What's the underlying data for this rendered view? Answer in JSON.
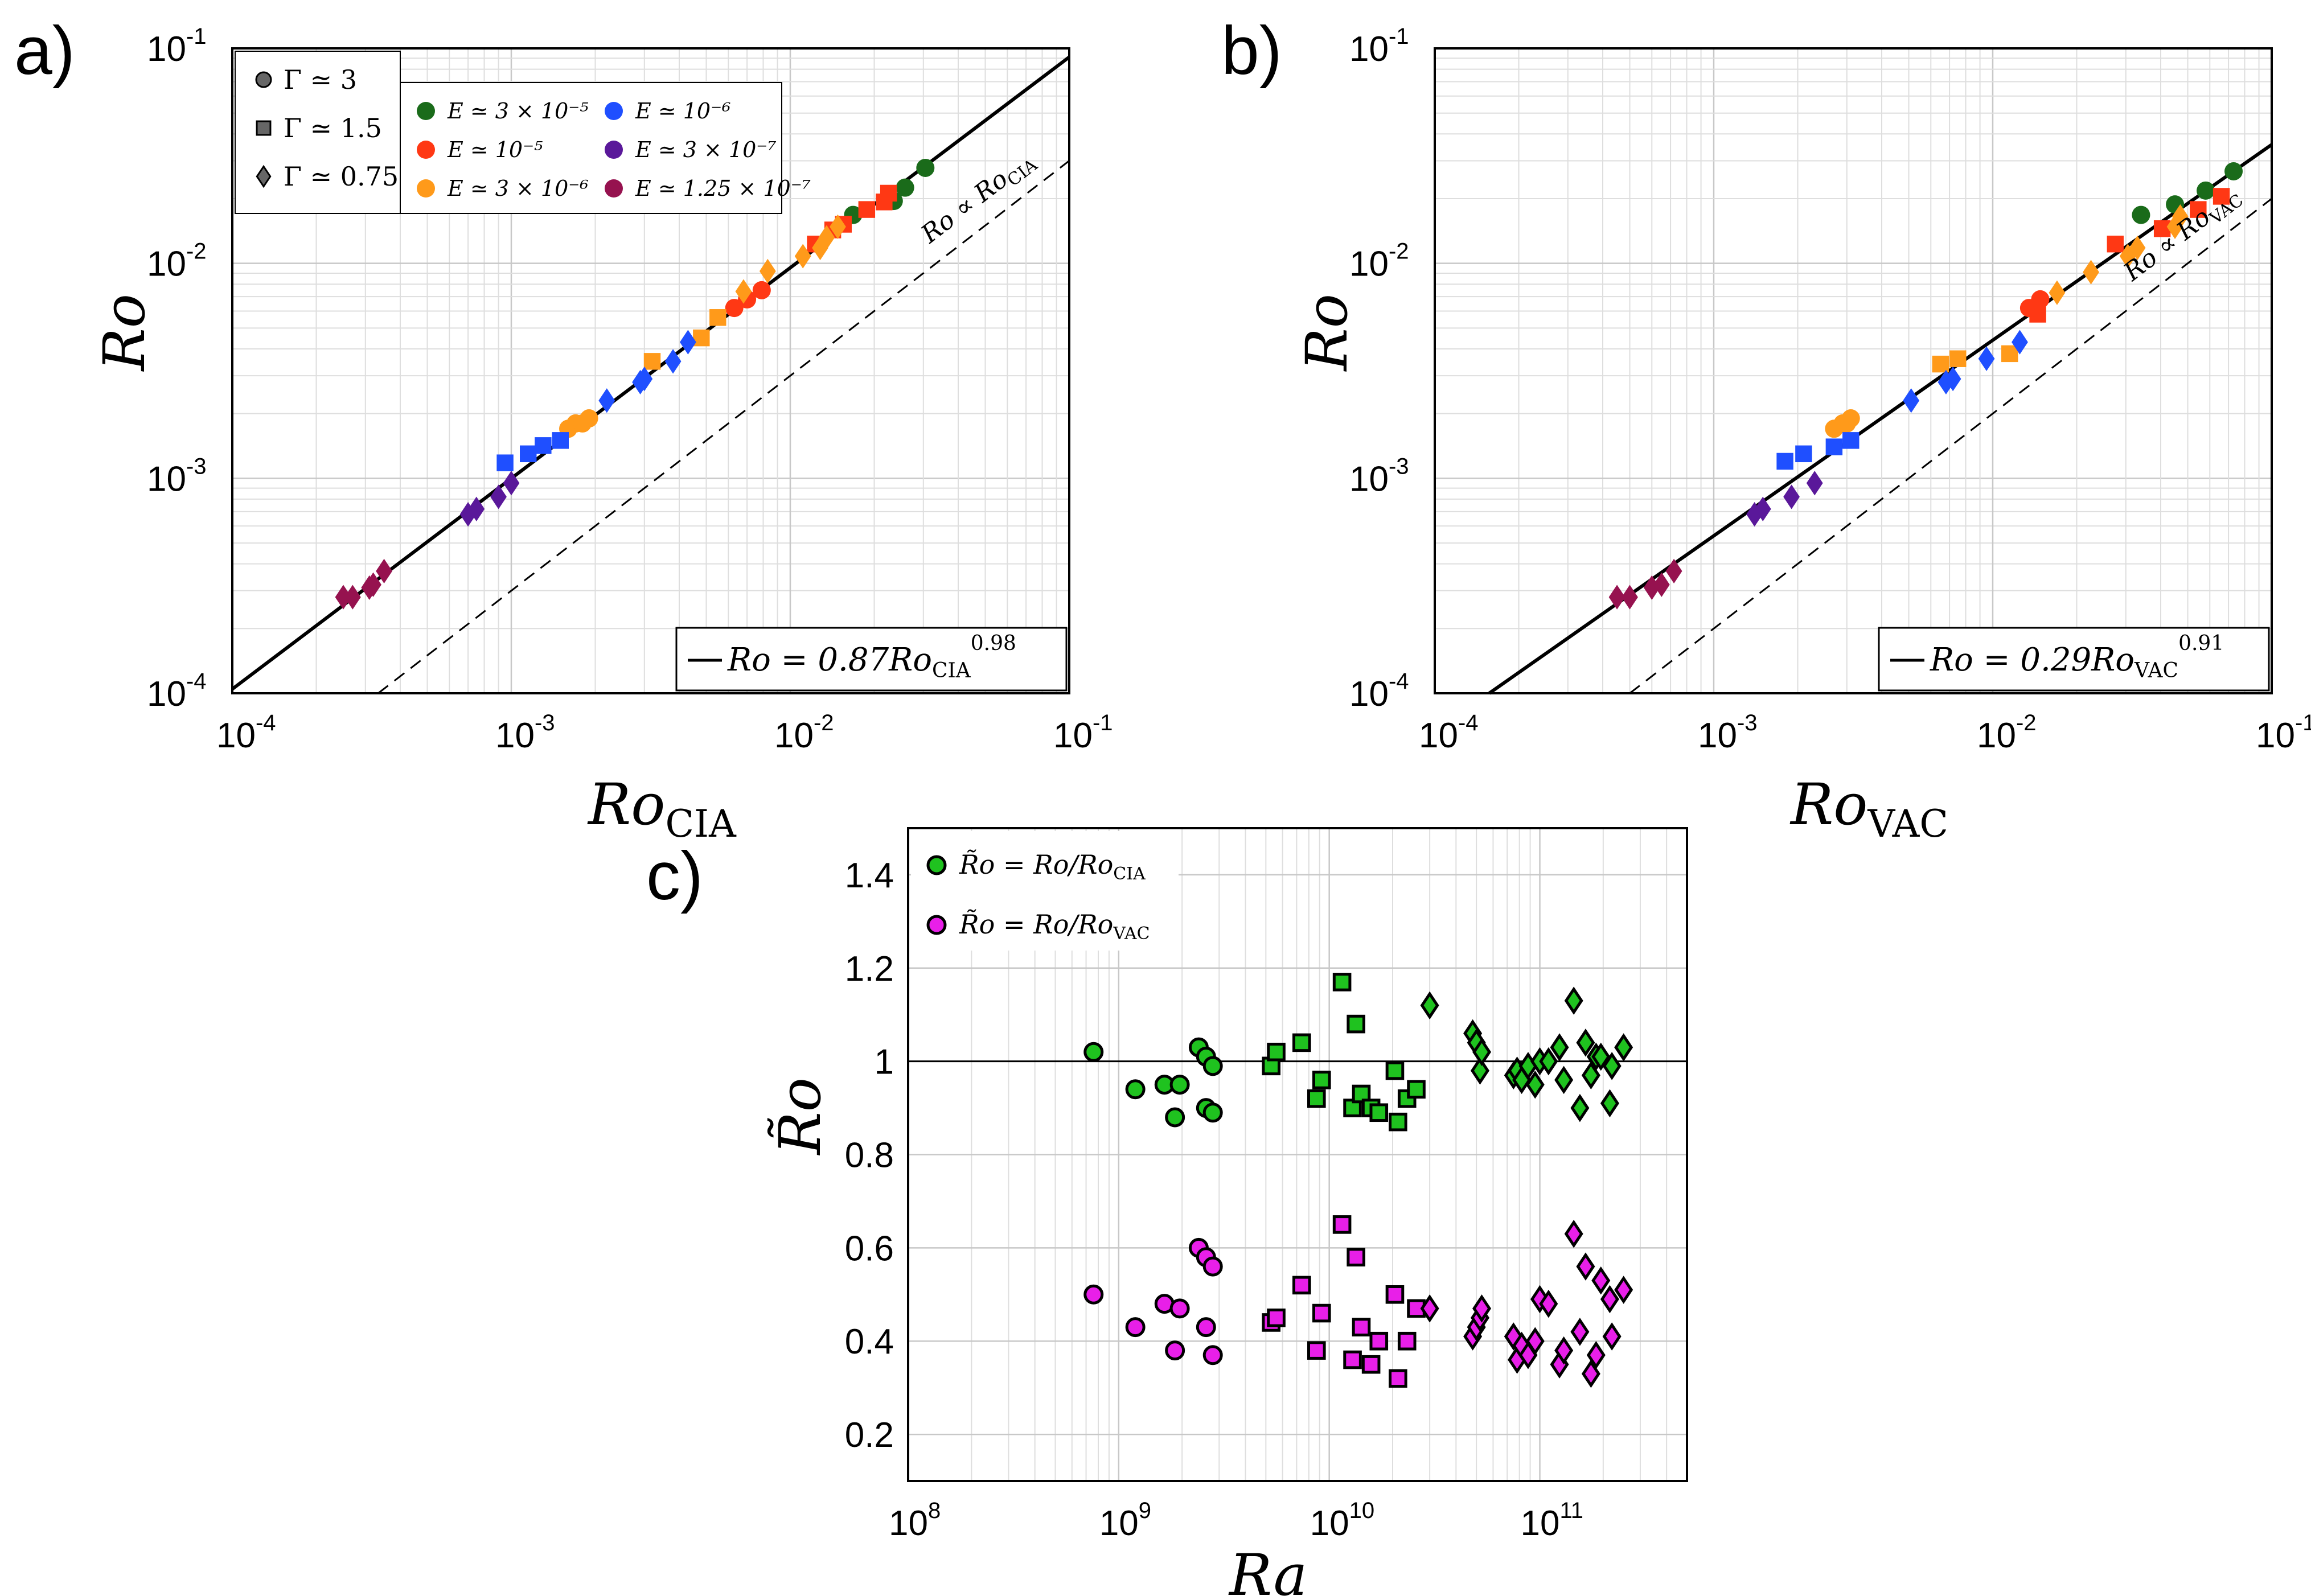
{
  "figure": {
    "panel_labels": [
      "a)",
      "b)",
      "c)"
    ]
  },
  "legend": {
    "shapes": [
      {
        "shape": "circle",
        "label": "Γ ≃ 3"
      },
      {
        "shape": "square",
        "label": "Γ ≃ 1.5"
      },
      {
        "shape": "diamond",
        "label": "Γ ≃ 0.75"
      }
    ],
    "ekman": [
      {
        "key": "E3e-5",
        "label": "E ≃ 3 × 10⁻⁵",
        "color": "#1a6b1a"
      },
      {
        "key": "E1e-6",
        "label": "E ≃ 10⁻⁶",
        "color": "#1f4fff"
      },
      {
        "key": "E1e-5",
        "label": "E ≃ 10⁻⁵",
        "color": "#ff3814"
      },
      {
        "key": "E3e-7",
        "label": "E ≃ 3 × 10⁻⁷",
        "color": "#5a189a"
      },
      {
        "key": "E3e-6",
        "label": "E ≃ 3 × 10⁻⁶",
        "color": "#ff9a1a"
      },
      {
        "key": "E1.25e-7",
        "label": "E ≃ 1.25 × 10⁻⁷",
        "color": "#96124f"
      }
    ]
  },
  "chart_data": [
    {
      "panel": "a)",
      "type": "scatter",
      "xscale": "log",
      "yscale": "log",
      "xlim": [
        0.0001,
        0.1
      ],
      "ylim": [
        0.0001,
        0.1
      ],
      "xticks": [
        0.0001,
        0.001,
        0.01,
        0.1
      ],
      "yticks": [
        0.0001,
        0.001,
        0.01,
        0.1
      ],
      "xlabel": "Ro",
      "xlabel_sub": "CIA",
      "ylabel": "Ro",
      "fit": {
        "coef": 0.87,
        "exp": 0.98,
        "text": "Ro = 0.87Ro",
        "sub": "CIA",
        "sup": "0.98"
      },
      "reference_line": {
        "coef": 0.3,
        "text": "Ro ∝ Ro",
        "sub": "CIA"
      },
      "grid": true,
      "series": [
        {
          "ekman": "E3e-5",
          "shape": "circle",
          "x": [
            0.0168,
            0.0235,
            0.0258,
            0.0305
          ],
          "y": [
            0.0168,
            0.0195,
            0.0225,
            0.0278
          ]
        },
        {
          "ekman": "E1e-5",
          "shape": "circle",
          "x": [
            0.0063,
            0.007,
            0.0079
          ],
          "y": [
            0.0062,
            0.0068,
            0.0075
          ]
        },
        {
          "ekman": "E1e-5",
          "shape": "square",
          "x": [
            0.0123,
            0.0142,
            0.0155,
            0.0188,
            0.0217,
            0.0225
          ],
          "y": [
            0.0123,
            0.0143,
            0.0152,
            0.0178,
            0.0193,
            0.0212
          ]
        },
        {
          "ekman": "E3e-6",
          "shape": "circle",
          "x": [
            0.0016,
            0.0017,
            0.0018,
            0.0019
          ],
          "y": [
            0.0017,
            0.0018,
            0.0018,
            0.0019
          ]
        },
        {
          "ekman": "E3e-6",
          "shape": "square",
          "x": [
            0.0032,
            0.0048,
            0.0055
          ],
          "y": [
            0.0035,
            0.0045,
            0.0056
          ]
        },
        {
          "ekman": "E3e-6",
          "shape": "diamond",
          "x": [
            0.0068,
            0.0083,
            0.0111,
            0.0128,
            0.0135,
            0.0148
          ],
          "y": [
            0.0074,
            0.0092,
            0.0108,
            0.0118,
            0.0132,
            0.0148
          ]
        },
        {
          "ekman": "E1e-6",
          "shape": "square",
          "x": [
            0.00095,
            0.00115,
            0.0013,
            0.0015
          ],
          "y": [
            0.00118,
            0.0013,
            0.00142,
            0.0015
          ]
        },
        {
          "ekman": "E1e-6",
          "shape": "diamond",
          "x": [
            0.0022,
            0.0029,
            0.003,
            0.0038,
            0.0043
          ],
          "y": [
            0.0023,
            0.0028,
            0.0029,
            0.0035,
            0.0043
          ]
        },
        {
          "ekman": "E3e-7",
          "shape": "diamond",
          "x": [
            0.0007,
            0.00075,
            0.0009,
            0.001
          ],
          "y": [
            0.00068,
            0.00072,
            0.00082,
            0.00095
          ]
        },
        {
          "ekman": "E1.25e-7",
          "shape": "diamond",
          "x": [
            0.00025,
            0.00027,
            0.00031,
            0.00032,
            0.00035
          ],
          "y": [
            0.00028,
            0.00028,
            0.00031,
            0.00032,
            0.00037
          ]
        }
      ]
    },
    {
      "panel": "b)",
      "type": "scatter",
      "xscale": "log",
      "yscale": "log",
      "xlim": [
        0.0001,
        0.1
      ],
      "ylim": [
        0.0001,
        0.1
      ],
      "xticks": [
        0.0001,
        0.001,
        0.01,
        0.1
      ],
      "yticks": [
        0.0001,
        0.001,
        0.01,
        0.1
      ],
      "xlabel": "Ro",
      "xlabel_sub": "VAC",
      "ylabel": "Ro",
      "fit": {
        "coef": 0.29,
        "exp": 0.91,
        "text": "Ro = 0.29Ro",
        "sub": "VAC",
        "sup": "0.91"
      },
      "reference_line": {
        "coef": 0.2,
        "text": "Ro ∝ Ro",
        "sub": "VAC"
      },
      "grid": true,
      "series": [
        {
          "ekman": "E3e-5",
          "shape": "circle",
          "x": [
            0.034,
            0.045,
            0.058,
            0.073
          ],
          "y": [
            0.0168,
            0.0188,
            0.0218,
            0.0268
          ]
        },
        {
          "ekman": "E1e-5",
          "shape": "circle",
          "x": [
            0.0135,
            0.0148
          ],
          "y": [
            0.0062,
            0.0068
          ]
        },
        {
          "ekman": "E1e-5",
          "shape": "square",
          "x": [
            0.0145,
            0.0275,
            0.0405,
            0.0545,
            0.066
          ],
          "y": [
            0.0058,
            0.0123,
            0.0145,
            0.0178,
            0.0205
          ]
        },
        {
          "ekman": "E3e-6",
          "shape": "circle",
          "x": [
            0.0027,
            0.0029,
            0.003,
            0.0031
          ],
          "y": [
            0.0017,
            0.0018,
            0.0018,
            0.0019
          ]
        },
        {
          "ekman": "E3e-6",
          "shape": "square",
          "x": [
            0.0065,
            0.0075,
            0.0115
          ],
          "y": [
            0.0034,
            0.0036,
            0.0038
          ]
        },
        {
          "ekman": "E3e-6",
          "shape": "diamond",
          "x": [
            0.017,
            0.0225,
            0.0305,
            0.033,
            0.045,
            0.047
          ],
          "y": [
            0.0073,
            0.0091,
            0.0108,
            0.0118,
            0.0148,
            0.0165
          ]
        },
        {
          "ekman": "E1e-6",
          "shape": "square",
          "x": [
            0.0018,
            0.0021,
            0.0027,
            0.0031
          ],
          "y": [
            0.0012,
            0.0013,
            0.0014,
            0.0015
          ]
        },
        {
          "ekman": "E1e-6",
          "shape": "diamond",
          "x": [
            0.0051,
            0.0068,
            0.0072,
            0.0095,
            0.0125
          ],
          "y": [
            0.0023,
            0.0028,
            0.0029,
            0.0036,
            0.0043
          ]
        },
        {
          "ekman": "E3e-7",
          "shape": "diamond",
          "x": [
            0.0014,
            0.0015,
            0.0019,
            0.0023
          ],
          "y": [
            0.00068,
            0.00072,
            0.00082,
            0.00095
          ]
        },
        {
          "ekman": "E1.25e-7",
          "shape": "diamond",
          "x": [
            0.00045,
            0.0005,
            0.0006,
            0.00065,
            0.00072
          ],
          "y": [
            0.00028,
            0.00028,
            0.00031,
            0.00032,
            0.00037
          ]
        }
      ]
    },
    {
      "panel": "c)",
      "type": "scatter",
      "xscale": "log",
      "yscale": "linear",
      "xlim": [
        100000000,
        500000000000
      ],
      "ylim": [
        0.1,
        1.5
      ],
      "xticks": [
        100000000,
        1000000000,
        10000000000,
        100000000000
      ],
      "xtick_labels": [
        {
          "base": "10",
          "exp": "8"
        },
        {
          "base": "10",
          "exp": "9"
        },
        {
          "base": "10",
          "exp": "10"
        },
        {
          "base": "10",
          "exp": "11"
        }
      ],
      "yticks": [
        0.2,
        0.4,
        0.6,
        0.8,
        1.0,
        1.2,
        1.4
      ],
      "ytick_labels": [
        "0.2",
        "0.4",
        "0.6",
        "0.8",
        "1",
        "1.2",
        "1.4"
      ],
      "xlabel": "Ra",
      "ylabel": "R̃o",
      "hline": 1,
      "grid": true,
      "legend": [
        {
          "color": "#1fc21f",
          "label": "R̃o = Ro/Ro",
          "sub": "CIA"
        },
        {
          "color": "#e81fe8",
          "label": "R̃o = Ro/Ro",
          "sub": "VAC"
        }
      ],
      "series": [
        {
          "name": "CIA",
          "color": "#1fc21f",
          "shape": "circle",
          "x": [
            760000000,
            1200000000,
            1650000000,
            1850000000,
            1950000000,
            2400000000,
            2600000000,
            2600000000,
            2800000000,
            2800000000
          ],
          "y": [
            1.02,
            0.94,
            0.95,
            0.88,
            0.95,
            1.03,
            1.01,
            0.9,
            0.99,
            0.89
          ]
        },
        {
          "name": "CIA",
          "color": "#1fc21f",
          "shape": "square",
          "x": [
            5300000000,
            5600000000,
            7400000000,
            8700000000,
            9200000000,
            11500000000,
            12900000000,
            13400000000,
            14200000000,
            15800000000,
            17200000000,
            20500000000,
            21200000000,
            23400000000,
            25900000000
          ],
          "y": [
            0.99,
            1.02,
            1.04,
            0.92,
            0.96,
            1.17,
            0.9,
            1.08,
            0.93,
            0.9,
            0.89,
            0.98,
            0.87,
            0.92,
            0.94
          ]
        },
        {
          "name": "CIA",
          "color": "#1fc21f",
          "shape": "diamond",
          "x": [
            30000000000,
            48000000000,
            50000000000,
            52000000000,
            53000000000,
            75000000000,
            78000000000,
            82000000000,
            88000000000,
            95000000000,
            100000000000,
            110000000000,
            124000000000,
            130000000000,
            145000000000,
            155000000000,
            165000000000,
            175000000000,
            185000000000,
            195000000000,
            215000000000,
            220000000000,
            250000000000
          ],
          "y": [
            1.12,
            1.06,
            1.04,
            0.98,
            1.02,
            0.97,
            0.98,
            0.96,
            0.99,
            0.95,
            1.0,
            1.0,
            1.03,
            0.96,
            1.13,
            0.9,
            1.04,
            0.97,
            1.01,
            1.01,
            0.91,
            0.99,
            1.03
          ]
        },
        {
          "name": "VAC",
          "color": "#e81fe8",
          "shape": "circle",
          "x": [
            760000000,
            1200000000,
            1650000000,
            1850000000,
            1950000000,
            2400000000,
            2600000000,
            2600000000,
            2800000000,
            2800000000
          ],
          "y": [
            0.5,
            0.43,
            0.48,
            0.38,
            0.47,
            0.6,
            0.58,
            0.43,
            0.56,
            0.37
          ]
        },
        {
          "name": "VAC",
          "color": "#e81fe8",
          "shape": "square",
          "x": [
            5300000000,
            5600000000,
            7400000000,
            8700000000,
            9200000000,
            11500000000,
            12900000000,
            13400000000,
            14200000000,
            15800000000,
            17200000000,
            20500000000,
            21200000000,
            23400000000,
            25900000000
          ],
          "y": [
            0.44,
            0.45,
            0.52,
            0.38,
            0.46,
            0.65,
            0.36,
            0.58,
            0.43,
            0.35,
            0.4,
            0.5,
            0.32,
            0.4,
            0.47
          ]
        },
        {
          "name": "VAC",
          "color": "#e81fe8",
          "shape": "diamond",
          "x": [
            30000000000,
            48000000000,
            50000000000,
            52000000000,
            53000000000,
            75000000000,
            78000000000,
            82000000000,
            88000000000,
            95000000000,
            100000000000,
            110000000000,
            124000000000,
            130000000000,
            145000000000,
            155000000000,
            165000000000,
            175000000000,
            185000000000,
            195000000000,
            215000000000,
            220000000000,
            250000000000
          ],
          "y": [
            0.47,
            0.41,
            0.43,
            0.45,
            0.47,
            0.41,
            0.36,
            0.39,
            0.37,
            0.4,
            0.49,
            0.48,
            0.35,
            0.38,
            0.63,
            0.42,
            0.56,
            0.33,
            0.37,
            0.53,
            0.49,
            0.41,
            0.51
          ]
        }
      ]
    }
  ]
}
